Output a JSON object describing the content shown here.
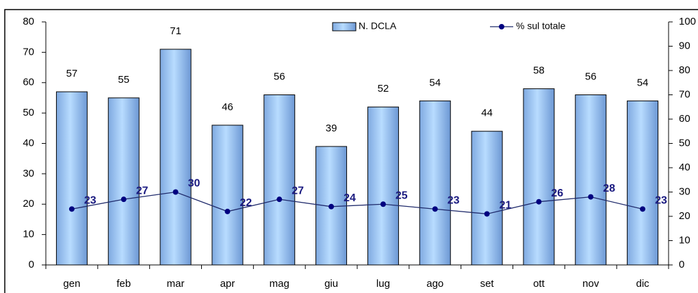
{
  "chart_data": {
    "type": "bar",
    "categories": [
      "gen",
      "feb",
      "mar",
      "apr",
      "mag",
      "giu",
      "lug",
      "ago",
      "set",
      "ott",
      "nov",
      "dic"
    ],
    "series": [
      {
        "name": "N. DCLA",
        "type": "bar",
        "color": "#99ccff",
        "values": [
          57,
          55,
          71,
          46,
          56,
          39,
          52,
          54,
          44,
          58,
          56,
          54
        ]
      },
      {
        "name": "% sul totale",
        "type": "line",
        "axis": "y2",
        "color": "#000080",
        "values": [
          23,
          27,
          30,
          22,
          27,
          24,
          25,
          23,
          21,
          26,
          28,
          23
        ]
      }
    ],
    "ylim": [
      0,
      80
    ],
    "yticks": [
      0,
      10,
      20,
      30,
      40,
      50,
      60,
      70,
      80
    ],
    "y2lim": [
      0,
      100
    ],
    "y2ticks": [
      0,
      10,
      20,
      30,
      40,
      50,
      60,
      70,
      80,
      90,
      100
    ],
    "legend": "top"
  }
}
